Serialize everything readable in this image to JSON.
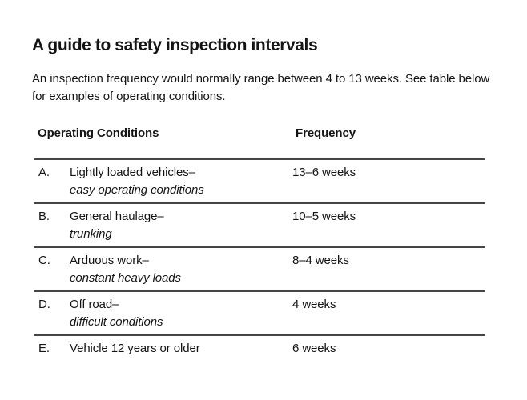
{
  "page": {
    "title": "A guide to safety inspection intervals",
    "intro": "An inspection frequency would normally range between 4 to 13 weeks. See table below for examples of operating conditions."
  },
  "table": {
    "headers": {
      "conditions": "Operating Conditions",
      "frequency": "Frequency"
    },
    "rows": [
      {
        "letter": "A.",
        "condition": "Lightly loaded vehicles–",
        "condition_detail": "easy operating conditions",
        "frequency": "13–6 weeks"
      },
      {
        "letter": "B.",
        "condition": "General haulage–",
        "condition_detail": "trunking",
        "frequency": "10–5 weeks"
      },
      {
        "letter": "C.",
        "condition": "Arduous work–",
        "condition_detail": "constant heavy loads",
        "frequency": "8–4 weeks"
      },
      {
        "letter": "D.",
        "condition": "Off road–",
        "condition_detail": "difficult conditions",
        "frequency": "4 weeks"
      },
      {
        "letter": "E.",
        "condition": "Vehicle 12 years or older",
        "condition_detail": "",
        "frequency": "6 weeks"
      }
    ],
    "colors": {
      "text": "#141414",
      "rule": "#454545"
    }
  }
}
